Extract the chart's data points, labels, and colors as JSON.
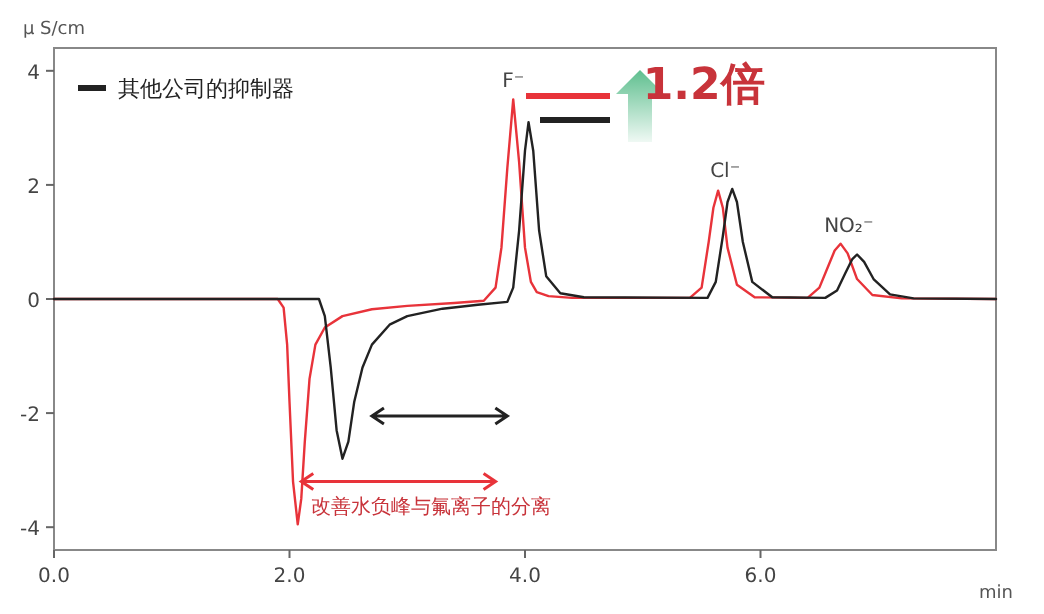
{
  "chart_data": {
    "type": "line",
    "ylabel": "μ S/cm",
    "xlabel": "min",
    "xlim": [
      0,
      8.0
    ],
    "xticks": [
      {
        "value": 0,
        "label": "0.0"
      },
      {
        "value": 2,
        "label": "2.0"
      },
      {
        "value": 4,
        "label": "4.0"
      },
      {
        "value": 6,
        "label": "6.0"
      }
    ],
    "ylim": [
      -4.4,
      4.4
    ],
    "yticks": [
      -4,
      -2,
      0,
      2,
      4
    ],
    "legend": "top left",
    "series": [
      {
        "color": "#e8333a",
        "x": [
          0,
          1.9,
          1.95,
          1.98,
          2.0,
          2.03,
          2.07,
          2.1,
          2.13,
          2.17,
          2.22,
          2.3,
          2.45,
          2.7,
          3.0,
          3.4,
          3.65,
          3.75,
          3.8,
          3.85,
          3.9,
          3.95,
          4.0,
          4.05,
          4.1,
          4.2,
          4.4,
          5.4,
          5.5,
          5.56,
          5.6,
          5.64,
          5.68,
          5.72,
          5.8,
          5.95,
          6.4,
          6.5,
          6.58,
          6.63,
          6.68,
          6.74,
          6.82,
          6.95,
          7.2,
          8.0
        ],
        "values": [
          0,
          0,
          -0.15,
          -0.8,
          -1.8,
          -3.2,
          -3.95,
          -3.5,
          -2.5,
          -1.4,
          -0.8,
          -0.5,
          -0.3,
          -0.18,
          -0.12,
          -0.07,
          -0.03,
          0.2,
          0.9,
          2.3,
          3.5,
          2.4,
          0.9,
          0.3,
          0.12,
          0.05,
          0.02,
          0.02,
          0.2,
          1.0,
          1.6,
          1.9,
          1.6,
          0.9,
          0.25,
          0.03,
          0.02,
          0.2,
          0.6,
          0.85,
          0.97,
          0.8,
          0.35,
          0.07,
          0.01,
          0
        ]
      },
      {
        "name": "其他公司的抑制器",
        "color": "#222222",
        "x": [
          0,
          2.25,
          2.3,
          2.35,
          2.4,
          2.45,
          2.5,
          2.55,
          2.62,
          2.7,
          2.85,
          3.0,
          3.3,
          3.6,
          3.85,
          3.9,
          3.95,
          4.0,
          4.03,
          4.07,
          4.12,
          4.18,
          4.3,
          4.5,
          5.55,
          5.62,
          5.68,
          5.72,
          5.76,
          5.8,
          5.85,
          5.93,
          6.1,
          6.55,
          6.65,
          6.72,
          6.78,
          6.82,
          6.88,
          6.96,
          7.1,
          7.3,
          8.0
        ],
        "values": [
          0,
          0,
          -0.3,
          -1.2,
          -2.3,
          -2.8,
          -2.5,
          -1.8,
          -1.2,
          -0.8,
          -0.45,
          -0.3,
          -0.17,
          -0.1,
          -0.05,
          0.2,
          1.2,
          2.6,
          3.1,
          2.6,
          1.2,
          0.4,
          0.1,
          0.03,
          0.02,
          0.3,
          1.1,
          1.7,
          1.93,
          1.7,
          1.0,
          0.3,
          0.03,
          0.02,
          0.15,
          0.45,
          0.7,
          0.78,
          0.65,
          0.35,
          0.08,
          0.01,
          0
        ]
      }
    ],
    "annotations": [
      {
        "text": "F⁻",
        "x": 3.9,
        "y": 3.5
      },
      {
        "text": "Cl⁻",
        "x": 5.7,
        "y": 1.93
      },
      {
        "text": "NO₂⁻",
        "x": 6.75,
        "y": 0.97
      },
      "1.2倍",
      "改善水负峰与氟离子的分离"
    ]
  }
}
